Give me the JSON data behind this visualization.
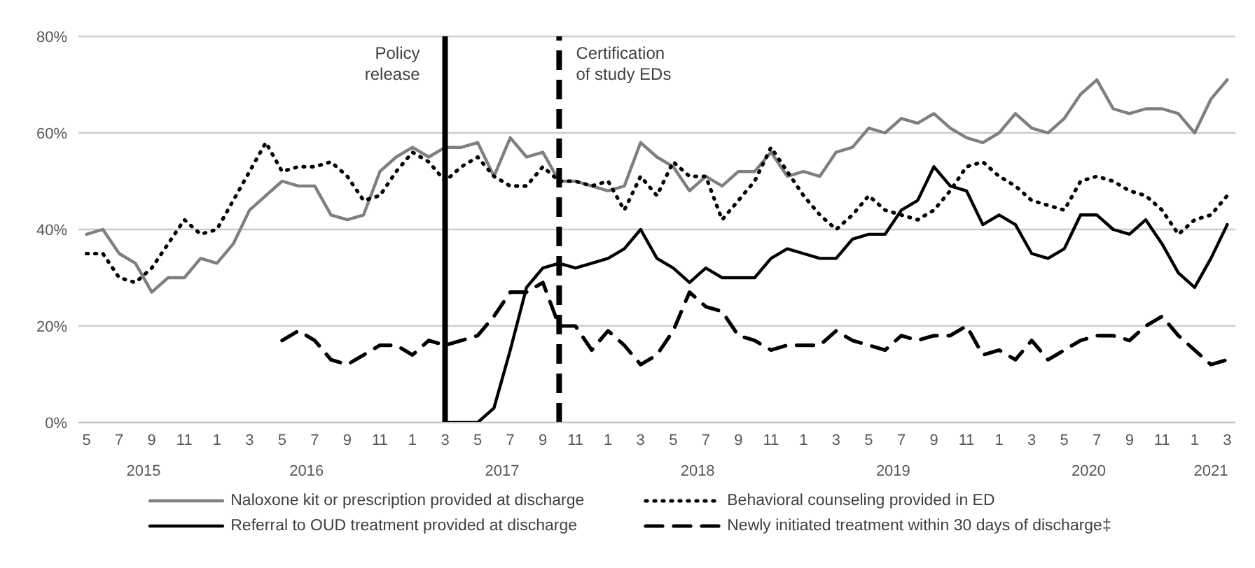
{
  "chart_data": {
    "type": "line",
    "x": [
      "2015-05",
      "2015-06",
      "2015-07",
      "2015-08",
      "2015-09",
      "2015-10",
      "2015-11",
      "2015-12",
      "2016-01",
      "2016-02",
      "2016-03",
      "2016-04",
      "2016-05",
      "2016-06",
      "2016-07",
      "2016-08",
      "2016-09",
      "2016-10",
      "2016-11",
      "2016-12",
      "2017-01",
      "2017-02",
      "2017-03",
      "2017-04",
      "2017-05",
      "2017-06",
      "2017-07",
      "2017-08",
      "2017-09",
      "2017-10",
      "2017-11",
      "2017-12",
      "2018-01",
      "2018-02",
      "2018-03",
      "2018-04",
      "2018-05",
      "2018-06",
      "2018-07",
      "2018-08",
      "2018-09",
      "2018-10",
      "2018-11",
      "2018-12",
      "2019-01",
      "2019-02",
      "2019-03",
      "2019-04",
      "2019-05",
      "2019-06",
      "2019-07",
      "2019-08",
      "2019-09",
      "2019-10",
      "2019-11",
      "2019-12",
      "2020-01",
      "2020-02",
      "2020-03",
      "2020-04",
      "2020-05",
      "2020-06",
      "2020-07",
      "2020-08",
      "2020-09",
      "2020-10",
      "2020-11",
      "2020-12",
      "2021-01",
      "2021-02",
      "2021-03"
    ],
    "series": [
      {
        "name": "Naloxone kit or prescription provided at discharge",
        "color": "#7f7f7f",
        "line_style": "solid",
        "values": [
          39,
          40,
          35,
          33,
          27,
          30,
          30,
          34,
          33,
          37,
          44,
          47,
          50,
          49,
          49,
          43,
          42,
          43,
          52,
          55,
          57,
          55,
          57,
          57,
          58,
          51,
          59,
          55,
          56,
          50,
          50,
          49,
          48,
          49,
          58,
          55,
          53,
          48,
          51,
          49,
          52,
          52,
          56,
          51,
          52,
          51,
          56,
          57,
          61,
          60,
          63,
          62,
          64,
          61,
          59,
          58,
          60,
          64,
          61,
          60,
          63,
          68,
          71,
          65,
          64,
          65,
          65,
          64,
          60,
          67,
          71
        ]
      },
      {
        "name": "Behavioral counseling provided in ED",
        "color": "#000000",
        "line_style": "dotted",
        "values": [
          35,
          35,
          30,
          29,
          32,
          37,
          42,
          39,
          40,
          46,
          52,
          58,
          52,
          53,
          53,
          54,
          51,
          46,
          47,
          52,
          56,
          54,
          50,
          53,
          55,
          51,
          49,
          49,
          53,
          50,
          50,
          49,
          50,
          44,
          51,
          47,
          54,
          51,
          51,
          42,
          46,
          50,
          57,
          52,
          47,
          43,
          40,
          43,
          47,
          44,
          43,
          42,
          44,
          48,
          53,
          54,
          51,
          49,
          46,
          45,
          44,
          50,
          51,
          50,
          48,
          47,
          44,
          39,
          42,
          43,
          47
        ]
      },
      {
        "name": "Referral to OUD treatment provided at discharge",
        "color": "#000000",
        "line_style": "solid",
        "values": [
          null,
          null,
          null,
          null,
          null,
          null,
          null,
          null,
          null,
          null,
          null,
          null,
          null,
          null,
          null,
          null,
          null,
          null,
          null,
          null,
          null,
          null,
          0,
          0,
          0,
          3,
          15,
          28,
          32,
          33,
          32,
          33,
          34,
          36,
          40,
          34,
          32,
          29,
          32,
          30,
          30,
          30,
          34,
          36,
          35,
          34,
          34,
          38,
          39,
          39,
          44,
          46,
          53,
          49,
          48,
          41,
          43,
          41,
          35,
          34,
          36,
          43,
          43,
          40,
          39,
          42,
          37,
          31,
          28,
          34,
          41
        ]
      },
      {
        "name": "Newly initiated treatment within 30 days of discharge‡",
        "color": "#000000",
        "line_style": "dashed",
        "values": [
          null,
          null,
          null,
          null,
          null,
          null,
          null,
          null,
          null,
          null,
          null,
          null,
          17,
          19,
          17,
          13,
          12,
          14,
          16,
          16,
          14,
          17,
          16,
          17,
          18,
          22,
          27,
          27,
          29,
          20,
          20,
          15,
          19,
          16,
          12,
          14,
          19,
          27,
          24,
          23,
          18,
          17,
          15,
          16,
          16,
          16,
          19,
          17,
          16,
          15,
          18,
          17,
          18,
          18,
          20,
          14,
          15,
          13,
          17,
          13,
          15,
          17,
          18,
          18,
          17,
          20,
          22,
          18,
          15,
          12,
          13
        ]
      }
    ],
    "xlim": [
      "2015-04-16",
      "2021-03-16"
    ],
    "xticks": [
      {
        "value": "2015-05",
        "label": "5"
      },
      {
        "value": "2015-07",
        "label": "7"
      },
      {
        "value": "2015-09",
        "label": "9"
      },
      {
        "value": "2015-11",
        "label": "11"
      },
      {
        "value": "2016-01",
        "label": "1"
      },
      {
        "value": "2016-03",
        "label": "3"
      },
      {
        "value": "2016-05",
        "label": "5"
      },
      {
        "value": "2016-07",
        "label": "7"
      },
      {
        "value": "2016-09",
        "label": "9"
      },
      {
        "value": "2016-11",
        "label": "11"
      },
      {
        "value": "2017-01",
        "label": "1"
      },
      {
        "value": "2017-03",
        "label": "3"
      },
      {
        "value": "2017-05",
        "label": "5"
      },
      {
        "value": "2017-07",
        "label": "7"
      },
      {
        "value": "2017-09",
        "label": "9"
      },
      {
        "value": "2017-11",
        "label": "11"
      },
      {
        "value": "2018-01",
        "label": "1"
      },
      {
        "value": "2018-03",
        "label": "3"
      },
      {
        "value": "2018-05",
        "label": "5"
      },
      {
        "value": "2018-07",
        "label": "7"
      },
      {
        "value": "2018-09",
        "label": "9"
      },
      {
        "value": "2018-11",
        "label": "11"
      },
      {
        "value": "2019-01",
        "label": "1"
      },
      {
        "value": "2019-03",
        "label": "3"
      },
      {
        "value": "2019-05",
        "label": "5"
      },
      {
        "value": "2019-07",
        "label": "7"
      },
      {
        "value": "2019-09",
        "label": "9"
      },
      {
        "value": "2019-11",
        "label": "11"
      },
      {
        "value": "2020-01",
        "label": "1"
      },
      {
        "value": "2020-03",
        "label": "3"
      },
      {
        "value": "2020-05",
        "label": "5"
      },
      {
        "value": "2020-07",
        "label": "7"
      },
      {
        "value": "2020-09",
        "label": "9"
      },
      {
        "value": "2020-11",
        "label": "11"
      },
      {
        "value": "2021-01",
        "label": "1"
      },
      {
        "value": "2021-03",
        "label": "3"
      }
    ],
    "ylim": [
      0,
      80
    ],
    "yticks": [
      {
        "value": 0,
        "label": "0%"
      },
      {
        "value": 20,
        "label": "20%"
      },
      {
        "value": 40,
        "label": "40%"
      },
      {
        "value": 60,
        "label": "60%"
      },
      {
        "value": 80,
        "label": "80%"
      }
    ],
    "grid": "y",
    "legend": "bottom",
    "marker": "none",
    "ref_lines": [
      {
        "axis": "x",
        "value": "2017-03",
        "label": "Policy release",
        "color": "#000000",
        "line_style": "solid"
      },
      {
        "axis": "x",
        "value": "2017-10",
        "label": "Certification of study EDs",
        "color": "#000000",
        "line_style": "dashed"
      }
    ],
    "annotations": [
      "2015",
      "2016",
      "2017",
      "2018",
      "2019",
      "2020",
      "2021"
    ]
  }
}
